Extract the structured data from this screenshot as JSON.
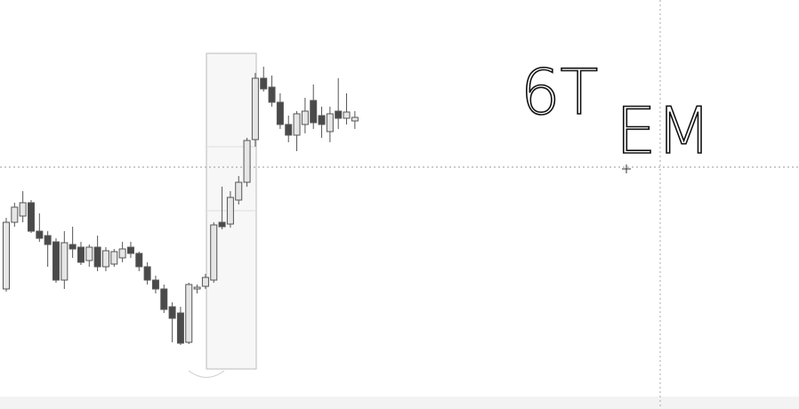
{
  "chart_data": {
    "type": "candlestick",
    "up_color": "#e6e6e6",
    "down_color": "#4a4a4a",
    "wick_color": "#555555",
    "ylim": [
      0,
      460
    ],
    "annotations": [
      "6T",
      "EM"
    ],
    "open": [
      135,
      210,
      217,
      232,
      200,
      195,
      188,
      145,
      185,
      182,
      167,
      182,
      160,
      163,
      170,
      182,
      175,
      160,
      145,
      135,
      115,
      108,
      75,
      135,
      138,
      145,
      210,
      208,
      235,
      255,
      303,
      372,
      362,
      345,
      320,
      308,
      320,
      347,
      330,
      312,
      335,
      327,
      324
    ],
    "high": [
      215,
      232,
      245,
      235,
      220,
      200,
      192,
      200,
      205,
      188,
      185,
      195,
      182,
      180,
      188,
      188,
      177,
      165,
      150,
      140,
      120,
      115,
      142,
      140,
      152,
      210,
      250,
      245,
      262,
      305,
      378,
      385,
      375,
      355,
      330,
      335,
      350,
      365,
      340,
      340,
      372,
      355,
      335
    ],
    "low": [
      132,
      205,
      210,
      198,
      188,
      160,
      142,
      135,
      170,
      162,
      160,
      155,
      155,
      160,
      165,
      170,
      155,
      140,
      130,
      108,
      75,
      72,
      73,
      130,
      135,
      142,
      202,
      204,
      230,
      250,
      295,
      357,
      340,
      315,
      300,
      290,
      310,
      315,
      305,
      300,
      315,
      320,
      315
    ],
    "close": [
      210,
      227,
      232,
      200,
      192,
      185,
      145,
      187,
      180,
      165,
      182,
      160,
      178,
      177,
      180,
      175,
      160,
      145,
      135,
      112,
      102,
      74,
      140,
      137,
      148,
      207,
      205,
      238,
      255,
      302,
      372,
      360,
      345,
      320,
      308,
      332,
      335,
      322,
      320,
      332,
      327,
      334,
      328
    ]
  }
}
